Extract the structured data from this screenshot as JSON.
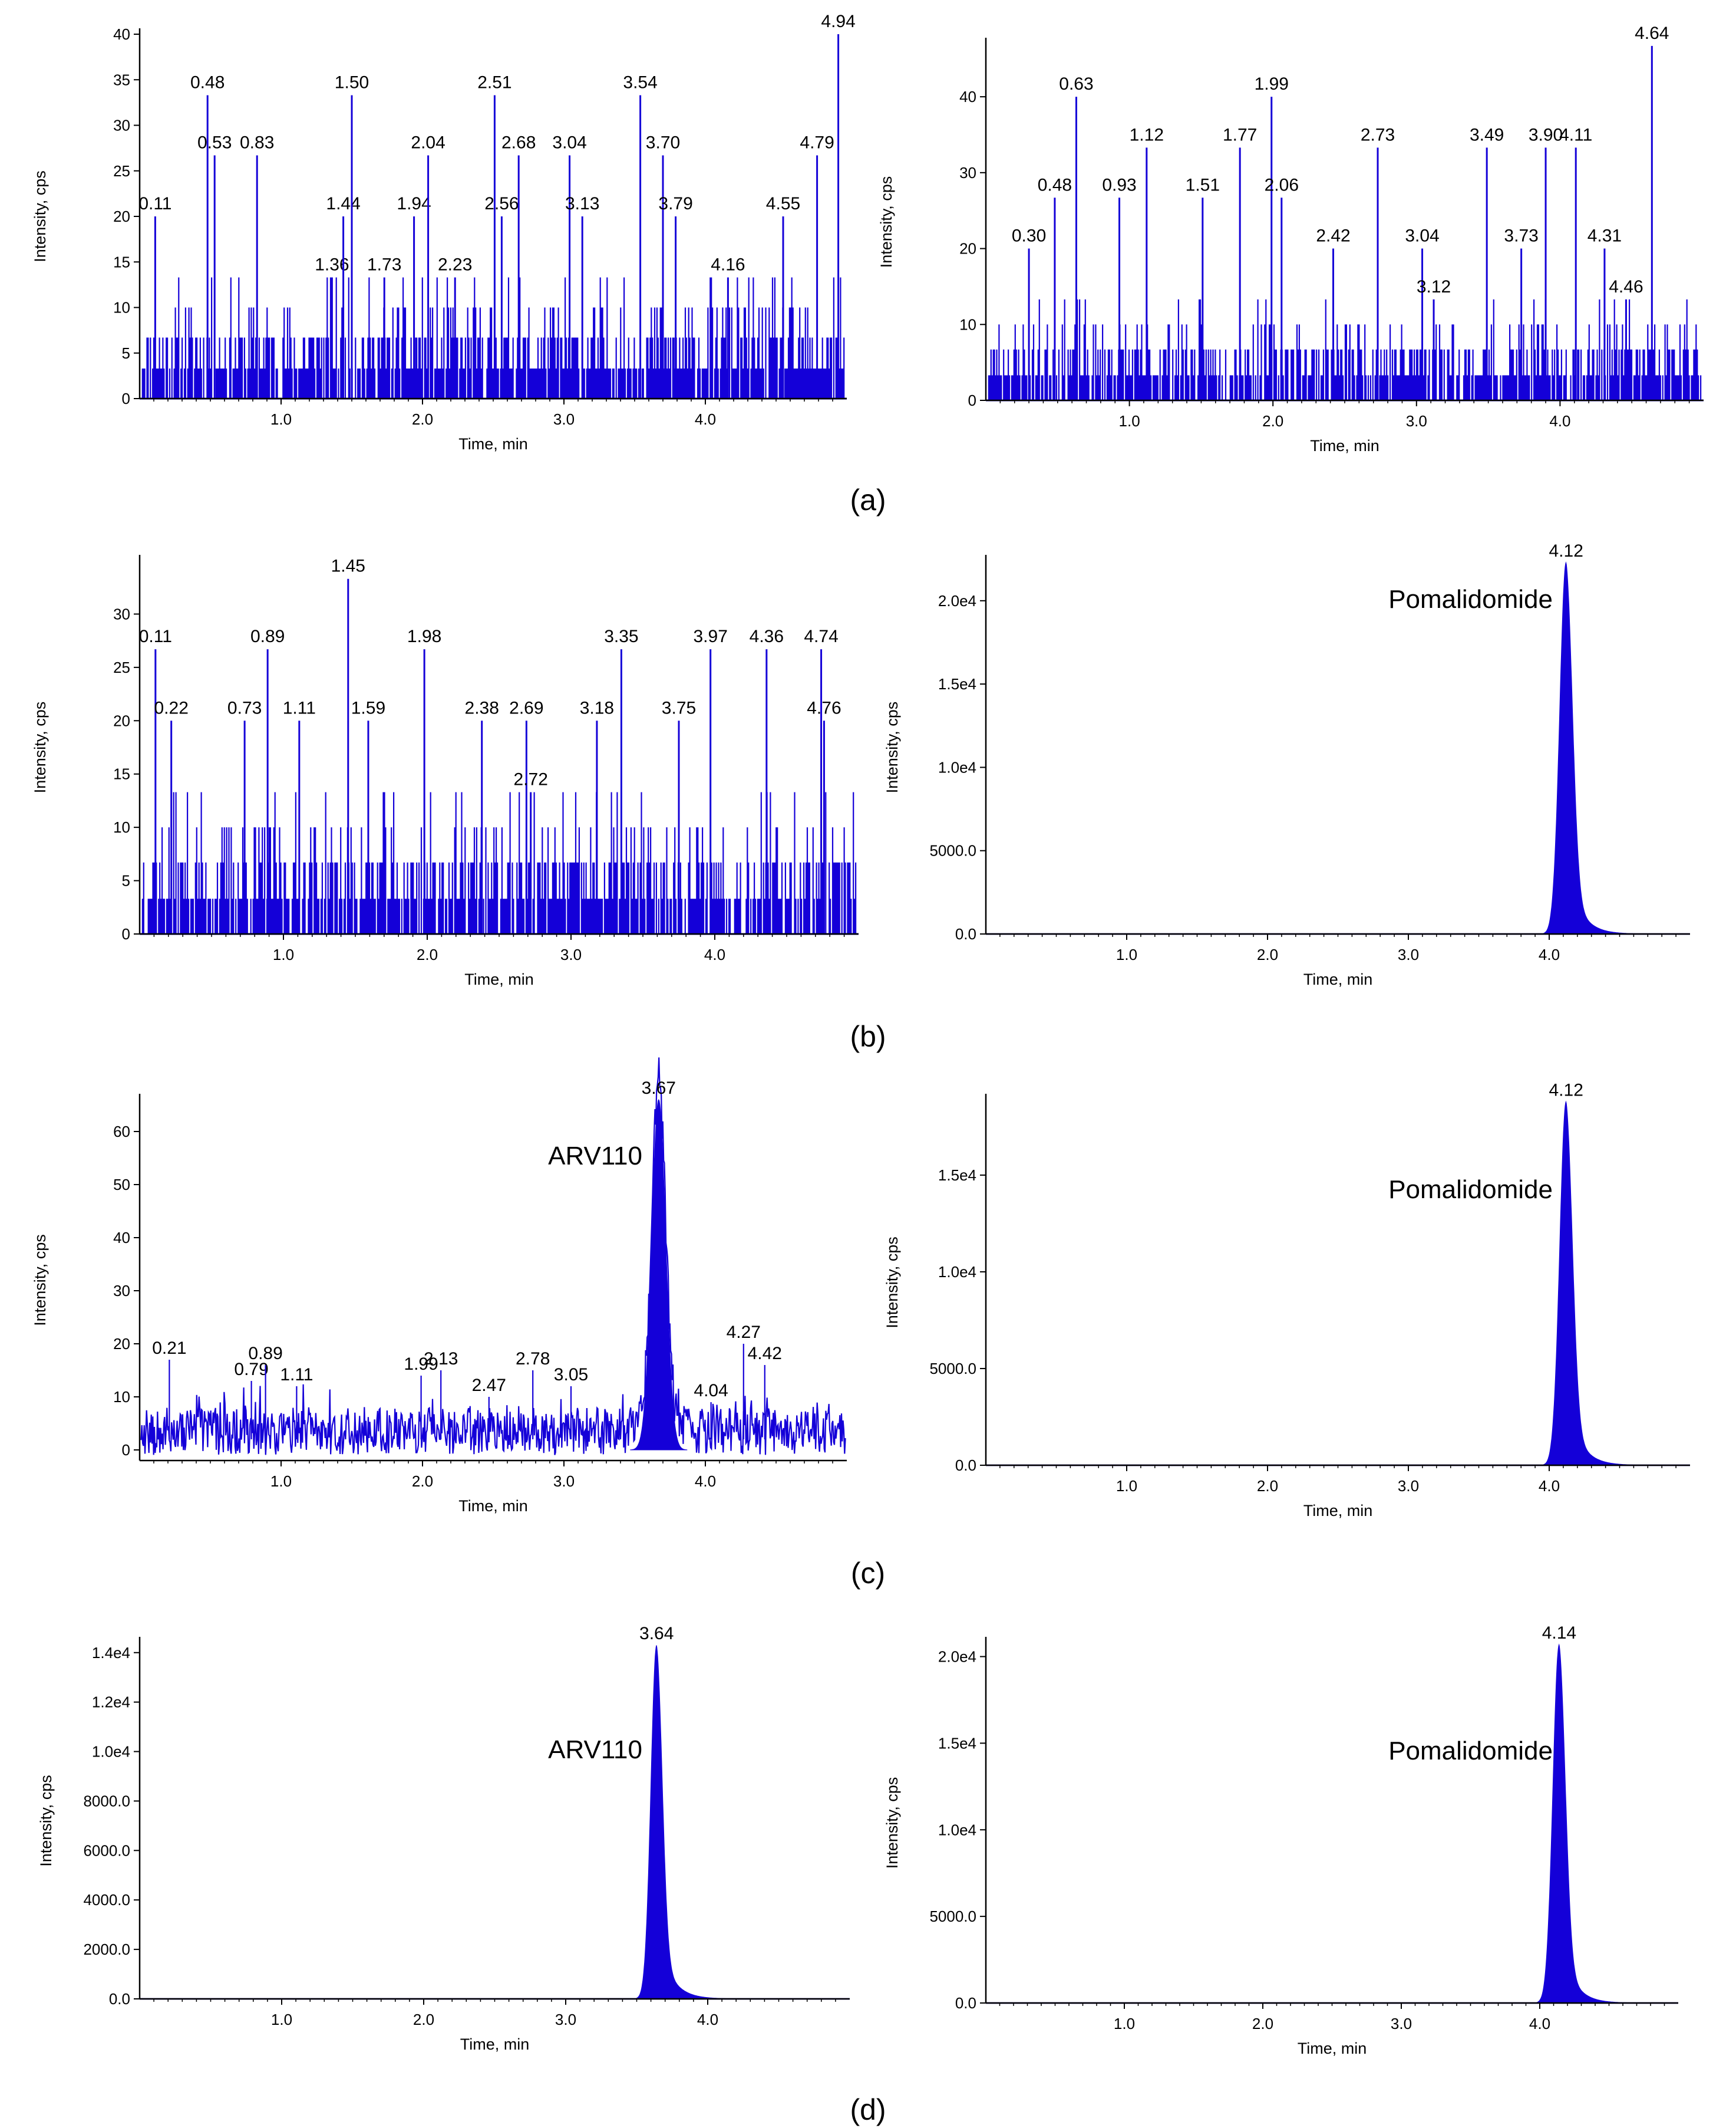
{
  "colors": {
    "trace": "#1400d8",
    "axis": "#000000",
    "background": "#ffffff"
  },
  "panel_labels": [
    "(a)",
    "(b)",
    "(c)",
    "(d)"
  ],
  "chart_data": [
    {
      "id": "a-left",
      "panel": "a",
      "type": "line",
      "style": "spiky",
      "xlabel": "Time, min",
      "ylabel": "Intensity, cps",
      "xlim": [
        0,
        5.0
      ],
      "ylim": [
        0,
        40
      ],
      "xticks": [
        {
          "v": 1,
          "label": "1.0"
        },
        {
          "v": 2,
          "label": "2.0"
        },
        {
          "v": 3,
          "label": "3.0"
        },
        {
          "v": 4,
          "label": "4.0"
        }
      ],
      "yticks": [
        {
          "v": 0,
          "label": "0"
        },
        {
          "v": 5,
          "label": "5"
        },
        {
          "v": 10,
          "label": "10"
        },
        {
          "v": 15,
          "label": "15"
        },
        {
          "v": 20,
          "label": "20"
        },
        {
          "v": 25,
          "label": "25"
        },
        {
          "v": 30,
          "label": "30"
        },
        {
          "v": 35,
          "label": "35"
        },
        {
          "v": 40,
          "label": "40"
        }
      ],
      "baseline_levels": [
        3.3,
        6.7,
        10,
        13.3
      ],
      "seed": 11,
      "peaks": [
        {
          "x": 0.11,
          "y": 20,
          "label": "0.11"
        },
        {
          "x": 0.48,
          "y": 33.3,
          "label": "0.48"
        },
        {
          "x": 0.53,
          "y": 26.7,
          "label": "0.53"
        },
        {
          "x": 0.83,
          "y": 26.7,
          "label": "0.83"
        },
        {
          "x": 1.36,
          "y": 13.3,
          "label": "1.36"
        },
        {
          "x": 1.44,
          "y": 20,
          "label": "1.44"
        },
        {
          "x": 1.5,
          "y": 33.3,
          "label": "1.50"
        },
        {
          "x": 1.73,
          "y": 13.3,
          "label": "1.73"
        },
        {
          "x": 1.94,
          "y": 20,
          "label": "1.94"
        },
        {
          "x": 2.04,
          "y": 26.7,
          "label": "2.04"
        },
        {
          "x": 2.23,
          "y": 13.3,
          "label": "2.23"
        },
        {
          "x": 2.51,
          "y": 33.3,
          "label": "2.51"
        },
        {
          "x": 2.56,
          "y": 20,
          "label": "2.56"
        },
        {
          "x": 2.68,
          "y": 26.7,
          "label": "2.68"
        },
        {
          "x": 3.04,
          "y": 26.7,
          "label": "3.04"
        },
        {
          "x": 3.13,
          "y": 20,
          "label": "3.13"
        },
        {
          "x": 3.54,
          "y": 33.3,
          "label": "3.54"
        },
        {
          "x": 3.7,
          "y": 26.7,
          "label": "3.70"
        },
        {
          "x": 3.79,
          "y": 20,
          "label": "3.79"
        },
        {
          "x": 4.16,
          "y": 13.3,
          "label": "4.16"
        },
        {
          "x": 4.55,
          "y": 20,
          "label": "4.55"
        },
        {
          "x": 4.79,
          "y": 26.7,
          "label": "4.79"
        },
        {
          "x": 4.94,
          "y": 40,
          "label": "4.94"
        }
      ]
    },
    {
      "id": "a-right",
      "panel": "a",
      "type": "line",
      "style": "spiky",
      "xlabel": "Time, min",
      "ylabel": "Intensity, cps",
      "xlim": [
        0,
        5.0
      ],
      "ylim": [
        0,
        47
      ],
      "xticks": [
        {
          "v": 1,
          "label": "1.0"
        },
        {
          "v": 2,
          "label": "2.0"
        },
        {
          "v": 3,
          "label": "3.0"
        },
        {
          "v": 4,
          "label": "4.0"
        }
      ],
      "yticks": [
        {
          "v": 0,
          "label": "0"
        },
        {
          "v": 10,
          "label": "10"
        },
        {
          "v": 20,
          "label": "20"
        },
        {
          "v": 30,
          "label": "30"
        },
        {
          "v": 40,
          "label": "40"
        }
      ],
      "baseline_levels": [
        3.3,
        6.7,
        10,
        13.3
      ],
      "seed": 23,
      "peaks": [
        {
          "x": 0.3,
          "y": 20,
          "label": "0.30"
        },
        {
          "x": 0.48,
          "y": 26.7,
          "label": "0.48"
        },
        {
          "x": 0.63,
          "y": 40,
          "label": "0.63"
        },
        {
          "x": 0.93,
          "y": 26.7,
          "label": "0.93"
        },
        {
          "x": 1.12,
          "y": 33.3,
          "label": "1.12"
        },
        {
          "x": 1.51,
          "y": 26.7,
          "label": "1.51"
        },
        {
          "x": 1.77,
          "y": 33.3,
          "label": "1.77"
        },
        {
          "x": 1.99,
          "y": 40,
          "label": "1.99"
        },
        {
          "x": 2.06,
          "y": 26.7,
          "label": "2.06"
        },
        {
          "x": 2.42,
          "y": 20,
          "label": "2.42"
        },
        {
          "x": 2.73,
          "y": 33.3,
          "label": "2.73"
        },
        {
          "x": 3.04,
          "y": 20,
          "label": "3.04"
        },
        {
          "x": 3.12,
          "y": 13.3,
          "label": "3.12"
        },
        {
          "x": 3.49,
          "y": 33.3,
          "label": "3.49"
        },
        {
          "x": 3.73,
          "y": 20,
          "label": "3.73"
        },
        {
          "x": 3.9,
          "y": 33.3,
          "label": "3.90"
        },
        {
          "x": 4.11,
          "y": 33.3,
          "label": "4.11"
        },
        {
          "x": 4.31,
          "y": 20,
          "label": "4.31"
        },
        {
          "x": 4.46,
          "y": 13.3,
          "label": "4.46"
        },
        {
          "x": 4.64,
          "y": 46.7,
          "label": "4.64"
        }
      ]
    },
    {
      "id": "b-left",
      "panel": "b",
      "type": "line",
      "style": "spiky",
      "xlabel": "Time, min",
      "ylabel": "Intensity, cps",
      "xlim": [
        0,
        5.0
      ],
      "ylim": [
        0,
        35
      ],
      "xticks": [
        {
          "v": 1,
          "label": "1.0"
        },
        {
          "v": 2,
          "label": "2.0"
        },
        {
          "v": 3,
          "label": "3.0"
        },
        {
          "v": 4,
          "label": "4.0"
        }
      ],
      "yticks": [
        {
          "v": 0,
          "label": "0"
        },
        {
          "v": 5,
          "label": "5"
        },
        {
          "v": 10,
          "label": "10"
        },
        {
          "v": 15,
          "label": "15"
        },
        {
          "v": 20,
          "label": "20"
        },
        {
          "v": 25,
          "label": "25"
        },
        {
          "v": 30,
          "label": "30"
        }
      ],
      "baseline_levels": [
        3.3,
        6.7,
        10,
        13.3
      ],
      "seed": 37,
      "peaks": [
        {
          "x": 0.11,
          "y": 26.7,
          "label": "0.11"
        },
        {
          "x": 0.22,
          "y": 20,
          "label": "0.22"
        },
        {
          "x": 0.73,
          "y": 20,
          "label": "0.73"
        },
        {
          "x": 0.89,
          "y": 26.7,
          "label": "0.89"
        },
        {
          "x": 1.11,
          "y": 20,
          "label": "1.11"
        },
        {
          "x": 1.45,
          "y": 33.3,
          "label": "1.45"
        },
        {
          "x": 1.59,
          "y": 20,
          "label": "1.59"
        },
        {
          "x": 1.98,
          "y": 26.7,
          "label": "1.98"
        },
        {
          "x": 2.38,
          "y": 20,
          "label": "2.38"
        },
        {
          "x": 2.69,
          "y": 20,
          "label": "2.69"
        },
        {
          "x": 2.72,
          "y": 13.3,
          "label": "2.72"
        },
        {
          "x": 3.18,
          "y": 20,
          "label": "3.18"
        },
        {
          "x": 3.35,
          "y": 26.7,
          "label": "3.35"
        },
        {
          "x": 3.75,
          "y": 20,
          "label": "3.75"
        },
        {
          "x": 3.97,
          "y": 26.7,
          "label": "3.97"
        },
        {
          "x": 4.36,
          "y": 26.7,
          "label": "4.36"
        },
        {
          "x": 4.74,
          "y": 26.7,
          "label": "4.74"
        },
        {
          "x": 4.76,
          "y": 20,
          "label": "4.76"
        }
      ]
    },
    {
      "id": "b-right",
      "panel": "b",
      "type": "area",
      "style": "gaussian",
      "xlabel": "Time, min",
      "ylabel": "Intensity, cps",
      "xlim": [
        0,
        5.0
      ],
      "ylim": [
        0,
        22400
      ],
      "xticks": [
        {
          "v": 1,
          "label": "1.0"
        },
        {
          "v": 2,
          "label": "2.0"
        },
        {
          "v": 3,
          "label": "3.0"
        },
        {
          "v": 4,
          "label": "4.0"
        }
      ],
      "yticks": [
        {
          "v": 0,
          "label": "0.0"
        },
        {
          "v": 5000,
          "label": "5000.0"
        },
        {
          "v": 10000,
          "label": "1.0e4"
        },
        {
          "v": 15000,
          "label": "1.5e4"
        },
        {
          "v": 20000,
          "label": "2.0e4"
        }
      ],
      "main_peak": {
        "x": 4.12,
        "y": 22300,
        "label": "4.12",
        "sigma": 0.045,
        "tail": 0.09
      },
      "annotation": "Pomalidomide"
    },
    {
      "id": "c-left",
      "panel": "c",
      "type": "line",
      "style": "noisy",
      "xlabel": "Time, min",
      "ylabel": "Intensity, cps",
      "xlim": [
        0,
        5.0
      ],
      "ylim": [
        -2,
        66
      ],
      "xticks": [
        {
          "v": 1,
          "label": "1.0"
        },
        {
          "v": 2,
          "label": "2.0"
        },
        {
          "v": 3,
          "label": "3.0"
        },
        {
          "v": 4,
          "label": "4.0"
        }
      ],
      "yticks": [
        {
          "v": 0,
          "label": "0"
        },
        {
          "v": 10,
          "label": "10"
        },
        {
          "v": 20,
          "label": "20"
        },
        {
          "v": 30,
          "label": "30"
        },
        {
          "v": 40,
          "label": "40"
        },
        {
          "v": 50,
          "label": "50"
        },
        {
          "v": 60,
          "label": "60"
        }
      ],
      "seed": 53,
      "main_peak": {
        "x": 3.67,
        "y": 66,
        "label": "3.67",
        "sigma": 0.05
      },
      "annotation": "ARV110",
      "peaks": [
        {
          "x": 0.21,
          "y": 17,
          "label": "0.21"
        },
        {
          "x": 0.79,
          "y": 13,
          "label": "0.79"
        },
        {
          "x": 0.89,
          "y": 16,
          "label": "0.89"
        },
        {
          "x": 1.11,
          "y": 12,
          "label": "1.11"
        },
        {
          "x": 1.99,
          "y": 14,
          "label": "1.99"
        },
        {
          "x": 2.13,
          "y": 15,
          "label": "2.13"
        },
        {
          "x": 2.47,
          "y": 10,
          "label": "2.47"
        },
        {
          "x": 2.78,
          "y": 15,
          "label": "2.78"
        },
        {
          "x": 3.05,
          "y": 12,
          "label": "3.05"
        },
        {
          "x": 4.04,
          "y": 9,
          "label": "4.04"
        },
        {
          "x": 4.27,
          "y": 20,
          "label": "4.27"
        },
        {
          "x": 4.42,
          "y": 16,
          "label": "4.42"
        }
      ]
    },
    {
      "id": "c-right",
      "panel": "c",
      "type": "area",
      "style": "gaussian",
      "xlabel": "Time, min",
      "ylabel": "Intensity, cps",
      "xlim": [
        0,
        5.0
      ],
      "ylim": [
        0,
        18900
      ],
      "xticks": [
        {
          "v": 1,
          "label": "1.0"
        },
        {
          "v": 2,
          "label": "2.0"
        },
        {
          "v": 3,
          "label": "3.0"
        },
        {
          "v": 4,
          "label": "4.0"
        }
      ],
      "yticks": [
        {
          "v": 0,
          "label": "0.0"
        },
        {
          "v": 5000,
          "label": "5000.0"
        },
        {
          "v": 10000,
          "label": "1.0e4"
        },
        {
          "v": 15000,
          "label": "1.5e4"
        }
      ],
      "main_peak": {
        "x": 4.12,
        "y": 18800,
        "label": "4.12",
        "sigma": 0.045,
        "tail": 0.09
      },
      "annotation": "Pomalidomide"
    },
    {
      "id": "d-left",
      "panel": "d",
      "type": "area",
      "style": "gaussian",
      "xlabel": "Time, min",
      "ylabel": "Intensity, cps",
      "xlim": [
        0,
        5.0
      ],
      "ylim": [
        0,
        14400
      ],
      "xticks": [
        {
          "v": 1,
          "label": "1.0"
        },
        {
          "v": 2,
          "label": "2.0"
        },
        {
          "v": 3,
          "label": "3.0"
        },
        {
          "v": 4,
          "label": "4.0"
        }
      ],
      "yticks": [
        {
          "v": 0,
          "label": "0.0"
        },
        {
          "v": 2000,
          "label": "2000.0"
        },
        {
          "v": 4000,
          "label": "4000.0"
        },
        {
          "v": 6000,
          "label": "6000.0"
        },
        {
          "v": 8000,
          "label": "8000.0"
        },
        {
          "v": 10000,
          "label": "1.0e4"
        },
        {
          "v": 12000,
          "label": "1.2e4"
        },
        {
          "v": 14000,
          "label": "1.4e4"
        }
      ],
      "main_peak": {
        "x": 3.64,
        "y": 14300,
        "label": "3.64",
        "sigma": 0.04,
        "tail": 0.09
      },
      "annotation": "ARV110"
    },
    {
      "id": "d-right",
      "panel": "d",
      "type": "area",
      "style": "gaussian",
      "xlabel": "Time, min",
      "ylabel": "Intensity, cps",
      "xlim": [
        0,
        5.0
      ],
      "ylim": [
        0,
        20800
      ],
      "xticks": [
        {
          "v": 1,
          "label": "1.0"
        },
        {
          "v": 2,
          "label": "2.0"
        },
        {
          "v": 3,
          "label": "3.0"
        },
        {
          "v": 4,
          "label": "4.0"
        }
      ],
      "yticks": [
        {
          "v": 0,
          "label": "0.0"
        },
        {
          "v": 5000,
          "label": "5000.0"
        },
        {
          "v": 10000,
          "label": "1.0e4"
        },
        {
          "v": 15000,
          "label": "1.5e4"
        },
        {
          "v": 20000,
          "label": "2.0e4"
        }
      ],
      "main_peak": {
        "x": 4.14,
        "y": 20700,
        "label": "4.14",
        "sigma": 0.045,
        "tail": 0.09
      },
      "annotation": "Pomalidomide"
    }
  ]
}
